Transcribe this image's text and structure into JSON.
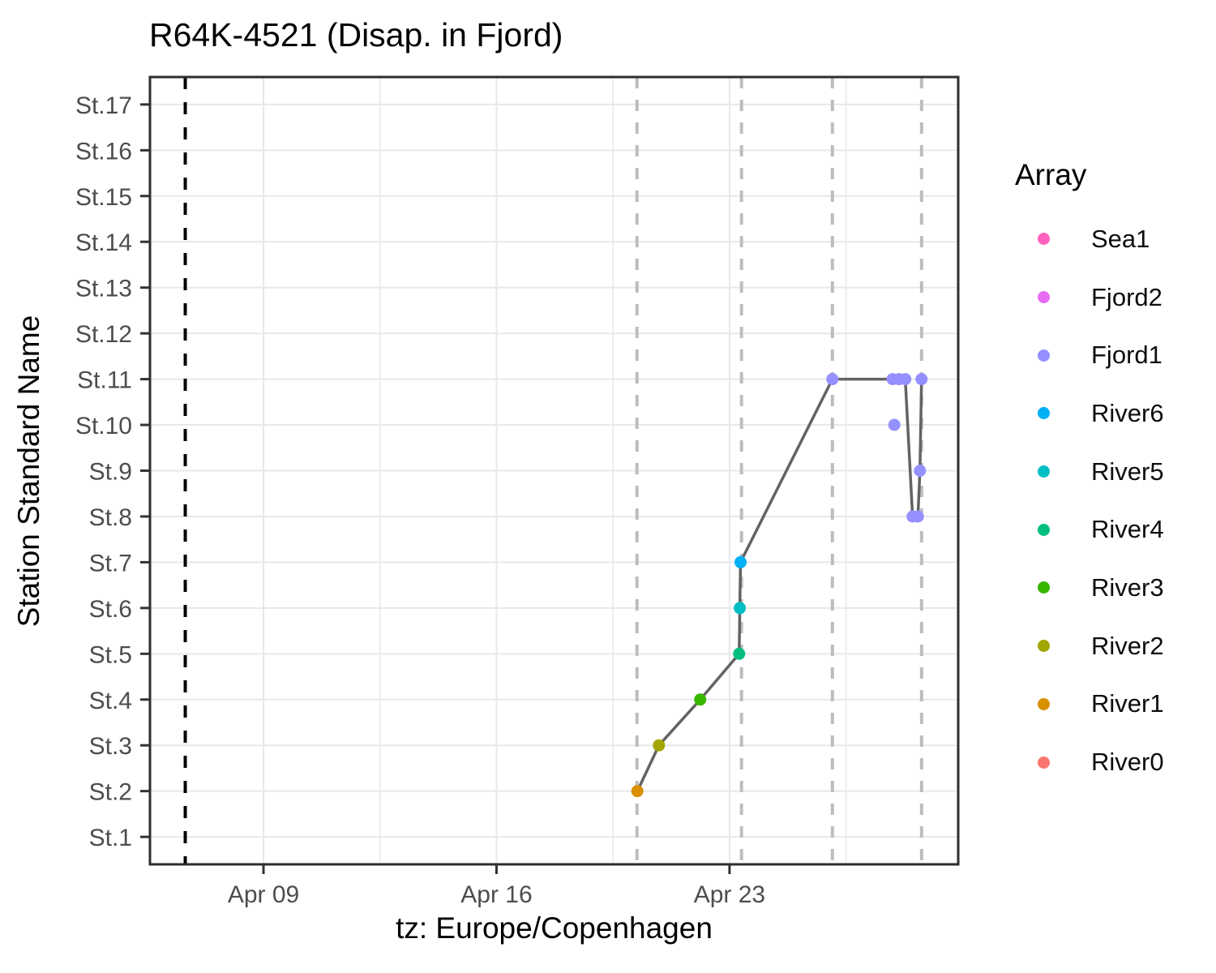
{
  "title": "R64K-4521 (Disap. in Fjord)",
  "colors": {
    "track_line": "#636363",
    "event_line_black": "#000000",
    "event_line_gray": "#bdbdbd",
    "grid": "#e8e8e8",
    "panel_border": "#2e2e2e",
    "tick": "#333333",
    "tick_label": "#4d4d4d",
    "panel_background": "#ffffff"
  },
  "legend": {
    "title": "Array",
    "entries": [
      {
        "label": "Sea1",
        "color": "#FF62BC"
      },
      {
        "label": "Fjord2",
        "color": "#E76BF3"
      },
      {
        "label": "Fjord1",
        "color": "#9590FF"
      },
      {
        "label": "River6",
        "color": "#00B0F6"
      },
      {
        "label": "River5",
        "color": "#00BFC4"
      },
      {
        "label": "River4",
        "color": "#00BF7D"
      },
      {
        "label": "River3",
        "color": "#39B600"
      },
      {
        "label": "River2",
        "color": "#A3A500"
      },
      {
        "label": "River1",
        "color": "#D89000"
      },
      {
        "label": "River0",
        "color": "#F8766D"
      }
    ]
  },
  "chart_data": {
    "type": "line",
    "title": "R64K-4521 (Disap. in Fjord)",
    "xlabel": "tz: Europe/Copenhagen",
    "ylabel": "Station Standard Name",
    "x_unit": "day of April",
    "x_domain": [
      5.59,
      29.87
    ],
    "x_major_ticks": [
      {
        "day": 9,
        "label": "Apr 09"
      },
      {
        "day": 16,
        "label": "Apr 16"
      },
      {
        "day": 23,
        "label": "Apr 23"
      }
    ],
    "x_minor_ticks": [
      12.5,
      19.5,
      26.5
    ],
    "stations": [
      "St.1",
      "St.2",
      "St.3",
      "St.4",
      "St.5",
      "St.6",
      "St.7",
      "St.8",
      "St.9",
      "St.10",
      "St.11",
      "St.12",
      "St.13",
      "St.14",
      "St.15",
      "St.16",
      "St.17"
    ],
    "y_domain": [
      0.4,
      17.6
    ],
    "grid": true,
    "legend_position": "right",
    "reference_lines": {
      "black_dashed_day": 6.65,
      "gray_dashed_days": [
        20.22,
        23.36,
        26.09,
        28.77
      ]
    },
    "detections": [
      {
        "day": 20.23,
        "station": 2,
        "array": "River1",
        "on_path": true
      },
      {
        "day": 20.88,
        "station": 3,
        "array": "River2",
        "on_path": true
      },
      {
        "day": 22.12,
        "station": 4,
        "array": "River3",
        "on_path": true
      },
      {
        "day": 23.29,
        "station": 5,
        "array": "River4",
        "on_path": true
      },
      {
        "day": 23.31,
        "station": 6,
        "array": "River5",
        "on_path": true
      },
      {
        "day": 23.33,
        "station": 7,
        "array": "River6",
        "on_path": true
      },
      {
        "day": 26.09,
        "station": 11,
        "array": "Fjord1",
        "on_path": true
      },
      {
        "day": 27.9,
        "station": 11,
        "array": "Fjord1",
        "on_path": true
      },
      {
        "day": 28.09,
        "station": 11,
        "array": "Fjord1",
        "on_path": true
      },
      {
        "day": 28.28,
        "station": 11,
        "array": "Fjord1",
        "on_path": true
      },
      {
        "day": 28.5,
        "station": 8,
        "array": "Fjord1",
        "on_path": true
      },
      {
        "day": 28.66,
        "station": 8,
        "array": "Fjord1",
        "on_path": true
      },
      {
        "day": 28.72,
        "station": 9,
        "array": "Fjord1",
        "on_path": true
      },
      {
        "day": 28.77,
        "station": 11,
        "array": "Fjord1",
        "on_path": true
      },
      {
        "day": 27.95,
        "station": 10,
        "array": "Fjord1",
        "on_path": false
      }
    ]
  }
}
